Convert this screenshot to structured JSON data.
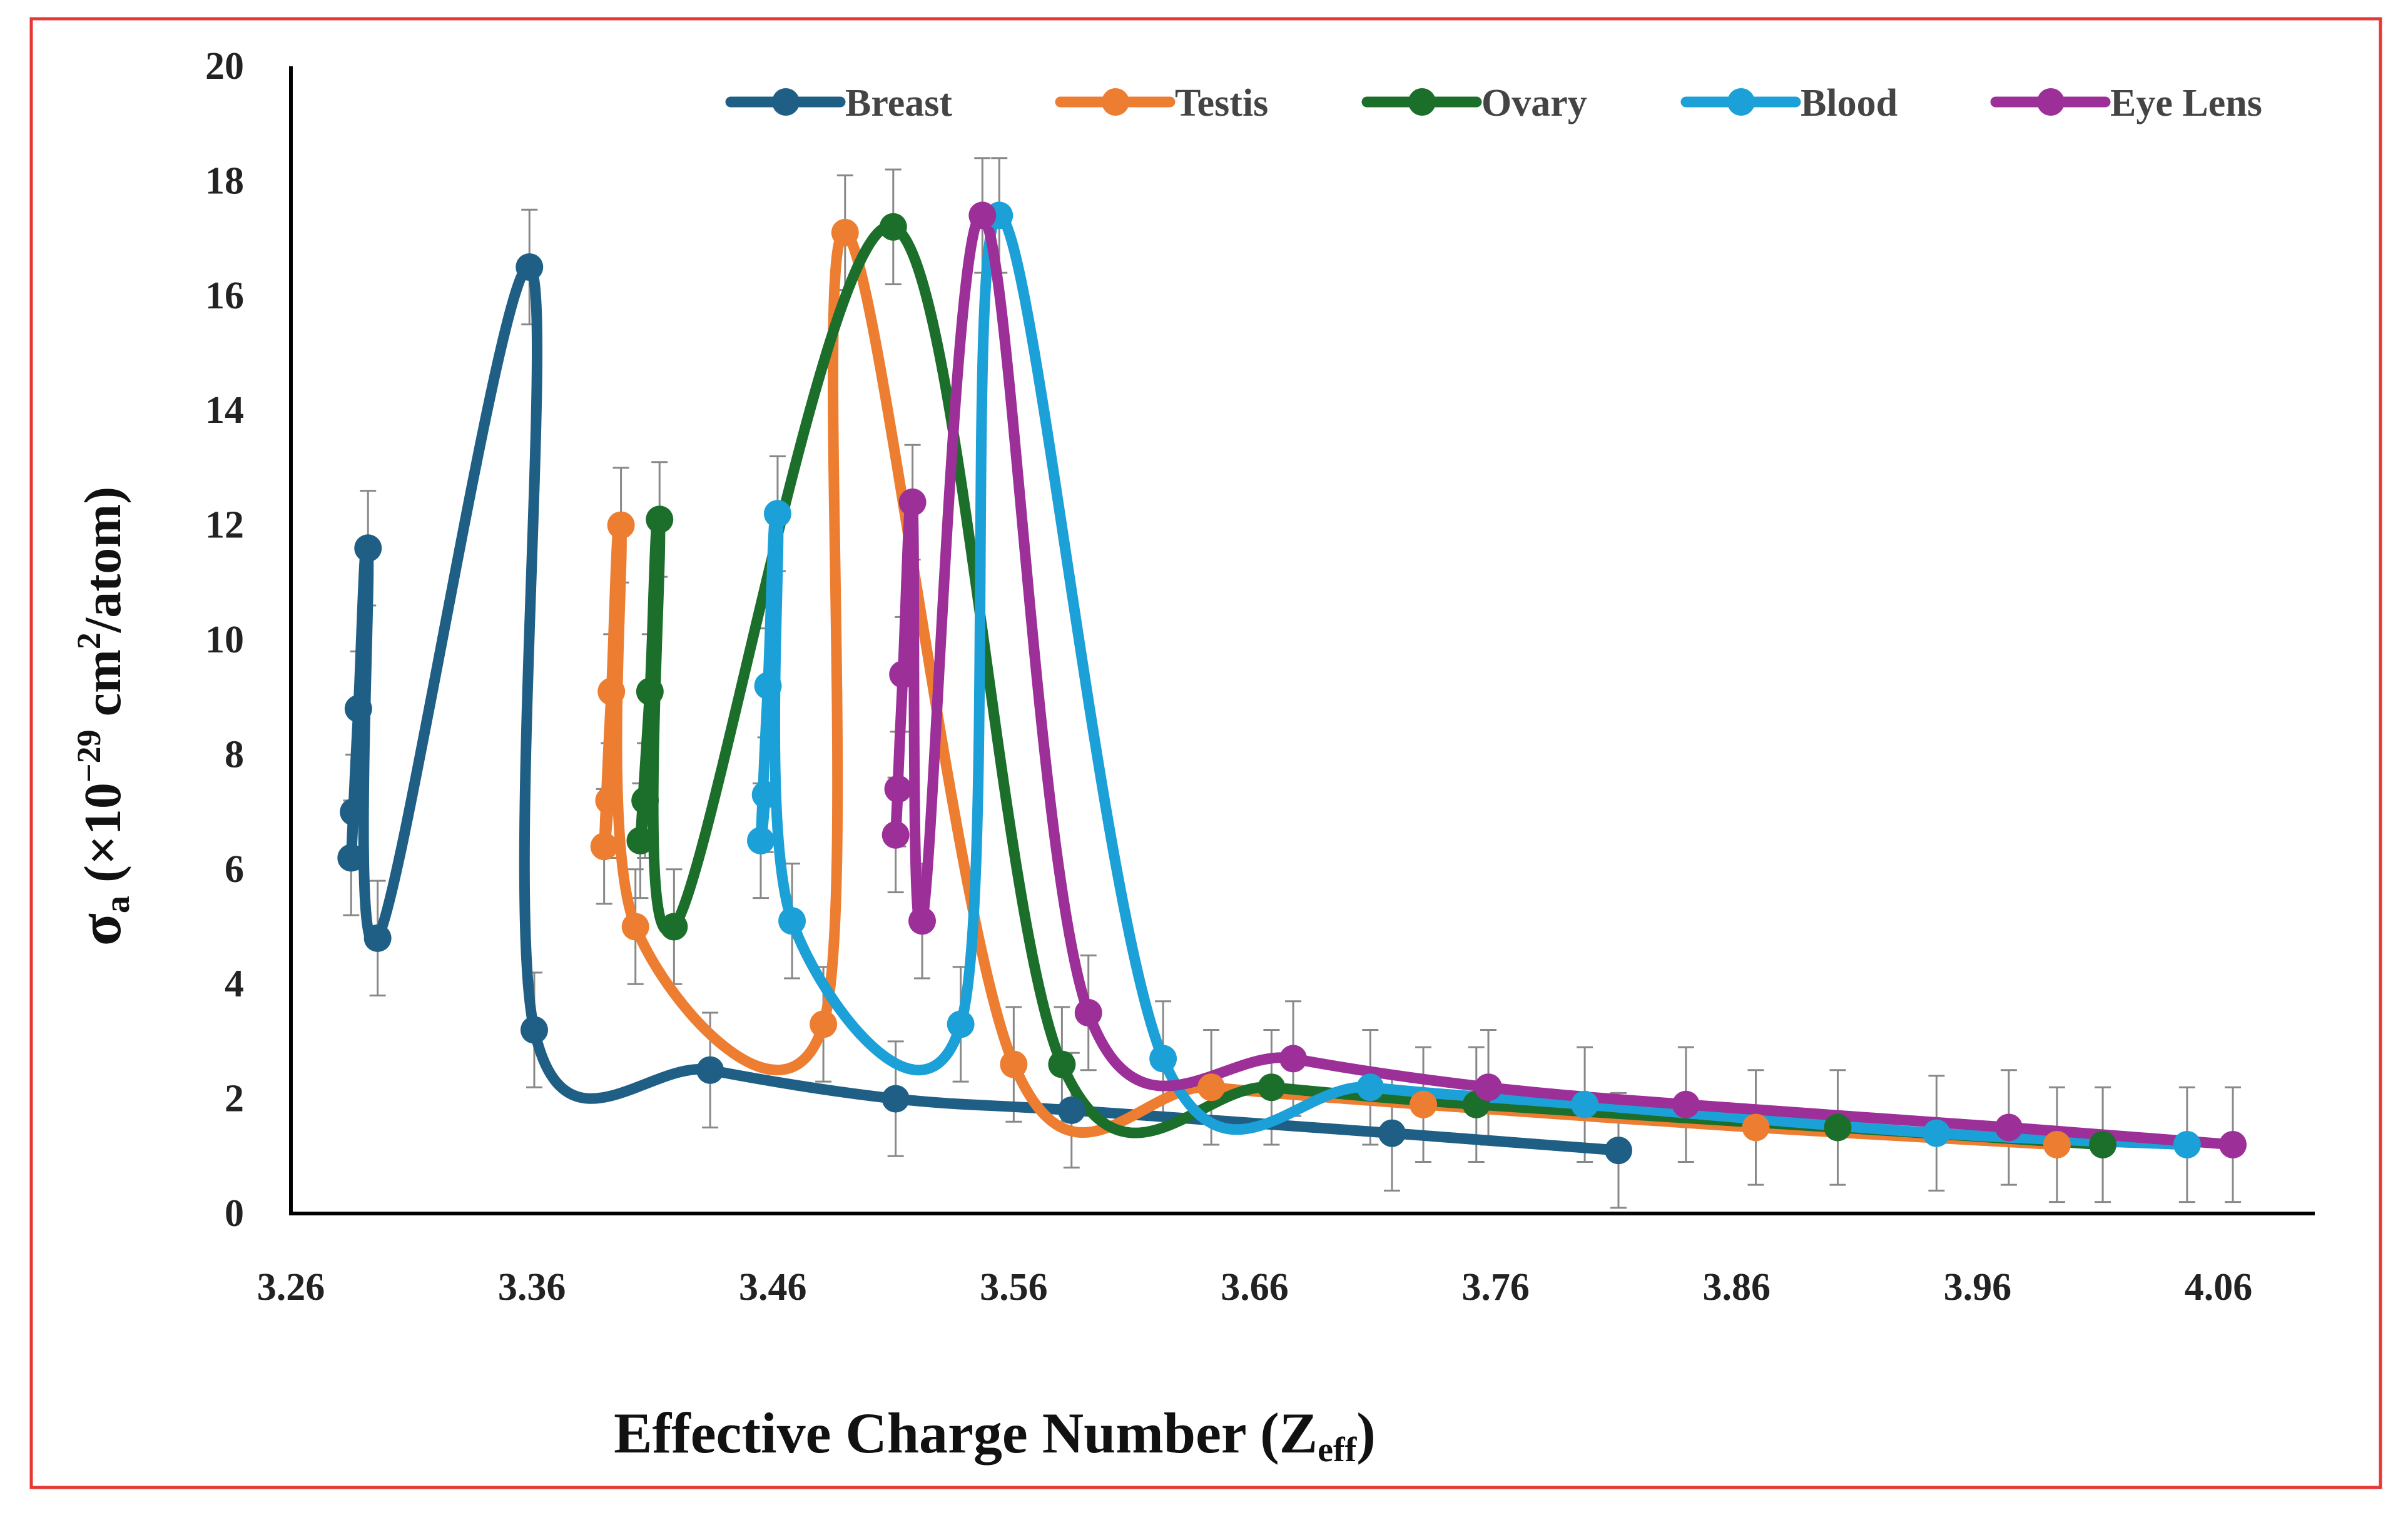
{
  "chart_data": {
    "type": "line",
    "title": "",
    "xlabel": "Effective Charge Number (Z",
    "xlabel_sub": "eff",
    "xlabel_close": ")",
    "ylabel": "σ",
    "ylabel_sub": "a",
    "ylabel_unit_prefix": " (×10",
    "ylabel_unit_exp": "−29",
    "ylabel_unit_mid": " cm",
    "ylabel_unit_exp2": "2",
    "ylabel_unit_suffix": "/atom)",
    "xlim": [
      3.26,
      4.1
    ],
    "ylim": [
      0,
      20
    ],
    "xticks": [
      "3.26",
      "3.36",
      "3.46",
      "3.56",
      "3.66",
      "3.76",
      "3.86",
      "3.96",
      "4.06"
    ],
    "yticks": [
      "0",
      "2",
      "4",
      "6",
      "8",
      "10",
      "12",
      "14",
      "16",
      "18",
      "20"
    ],
    "grid": false,
    "legend_position": "top",
    "error_bar": 1,
    "series": [
      {
        "name": "Breast",
        "color": "#1f5f85",
        "x": [
          3.286,
          3.285,
          3.288,
          3.292,
          3.296,
          3.359,
          3.361,
          3.434,
          3.511,
          3.584,
          3.717,
          3.811
        ],
        "y": [
          7.0,
          6.2,
          8.8,
          11.6,
          4.8,
          16.5,
          3.2,
          2.5,
          2.0,
          1.8,
          1.4,
          1.1
        ]
      },
      {
        "name": "Testis",
        "color": "#ed7d31",
        "x": [
          3.392,
          3.39,
          3.393,
          3.397,
          3.403,
          3.481,
          3.49,
          3.56,
          3.642,
          3.73,
          3.868,
          3.993
        ],
        "y": [
          7.2,
          6.4,
          9.1,
          12.0,
          5.0,
          3.3,
          17.1,
          2.6,
          2.2,
          1.9,
          1.5,
          1.2
        ]
      },
      {
        "name": "Ovary",
        "color": "#1b6f2a",
        "x": [
          3.407,
          3.405,
          3.409,
          3.413,
          3.419,
          3.51,
          3.58,
          3.667,
          3.752,
          3.902,
          4.012
        ],
        "y": [
          7.2,
          6.5,
          9.1,
          12.1,
          5.0,
          17.2,
          2.6,
          2.2,
          1.9,
          1.5,
          1.2
        ]
      },
      {
        "name": "Blood",
        "color": "#1ca0d8",
        "x": [
          3.457,
          3.455,
          3.458,
          3.462,
          3.468,
          3.538,
          3.554,
          3.622,
          3.708,
          3.797,
          3.943,
          4.047
        ],
        "y": [
          7.3,
          6.5,
          9.2,
          12.2,
          5.1,
          3.3,
          17.4,
          2.7,
          2.2,
          1.9,
          1.4,
          1.2
        ]
      },
      {
        "name": "Eye Lens",
        "color": "#9c2f98",
        "x": [
          3.512,
          3.511,
          3.514,
          3.518,
          3.522,
          3.547,
          3.591,
          3.676,
          3.757,
          3.839,
          3.973,
          4.066
        ],
        "y": [
          7.4,
          6.6,
          9.4,
          12.4,
          5.1,
          17.4,
          3.5,
          2.7,
          2.2,
          1.9,
          1.5,
          1.2
        ]
      }
    ]
  }
}
